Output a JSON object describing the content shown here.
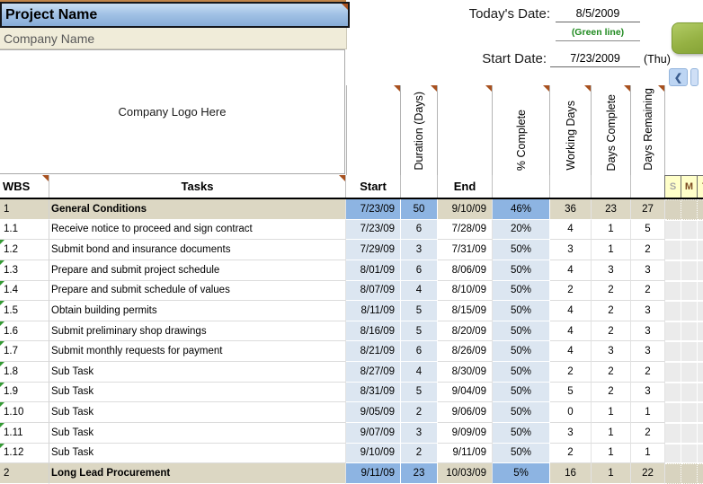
{
  "header": {
    "project_name": "Project Name",
    "company_name": "Company Name",
    "logo_placeholder": "Company Logo Here",
    "todays_date_label": "Today's Date:",
    "todays_date_value": "8/5/2009",
    "green_line_note": "(Green line)",
    "start_date_label": "Start Date:",
    "start_date_value": "7/23/2009",
    "start_date_day": "(Thu)"
  },
  "scrollbar": {
    "left_arrow": "❮"
  },
  "columns": {
    "wbs": "WBS",
    "tasks": "Tasks",
    "start": "Start",
    "duration": "Duration (Days)",
    "end": "End",
    "pct_complete": "% Complete",
    "working_days": "Working Days",
    "days_complete": "Days Complete",
    "days_remaining": "Days Remaining"
  },
  "day_headers": [
    "S",
    "M",
    "T"
  ],
  "colors": {
    "banner_blue": "#a3c3e6",
    "summary_blue": "#8db4e2",
    "task_blue": "#dce6f1",
    "summary_tan": "#dcd7c3",
    "day_header_yellow": "#ffffc9",
    "button_green": "#95b143",
    "green_note": "#1f8a1f",
    "comment_marker": "#a8511f",
    "flag_green": "#339933"
  },
  "rows": [
    {
      "wbs": "1",
      "task": "General Conditions",
      "start": "7/23/09",
      "duration": "50",
      "end": "9/10/09",
      "pct": "46%",
      "working": "36",
      "complete": "23",
      "remaining": "27",
      "summary": true,
      "flag": false
    },
    {
      "wbs": "1.1",
      "task": "Receive notice to proceed and sign contract",
      "start": "7/23/09",
      "duration": "6",
      "end": "7/28/09",
      "pct": "20%",
      "working": "4",
      "complete": "1",
      "remaining": "5",
      "summary": false,
      "flag": false
    },
    {
      "wbs": "1.2",
      "task": "Submit bond and insurance documents",
      "start": "7/29/09",
      "duration": "3",
      "end": "7/31/09",
      "pct": "50%",
      "working": "3",
      "complete": "1",
      "remaining": "2",
      "summary": false,
      "flag": true
    },
    {
      "wbs": "1.3",
      "task": "Prepare and submit project schedule",
      "start": "8/01/09",
      "duration": "6",
      "end": "8/06/09",
      "pct": "50%",
      "working": "4",
      "complete": "3",
      "remaining": "3",
      "summary": false,
      "flag": true
    },
    {
      "wbs": "1.4",
      "task": "Prepare and submit schedule of values",
      "start": "8/07/09",
      "duration": "4",
      "end": "8/10/09",
      "pct": "50%",
      "working": "2",
      "complete": "2",
      "remaining": "2",
      "summary": false,
      "flag": true
    },
    {
      "wbs": "1.5",
      "task": "Obtain building permits",
      "start": "8/11/09",
      "duration": "5",
      "end": "8/15/09",
      "pct": "50%",
      "working": "4",
      "complete": "2",
      "remaining": "3",
      "summary": false,
      "flag": true
    },
    {
      "wbs": "1.6",
      "task": "Submit preliminary shop drawings",
      "start": "8/16/09",
      "duration": "5",
      "end": "8/20/09",
      "pct": "50%",
      "working": "4",
      "complete": "2",
      "remaining": "3",
      "summary": false,
      "flag": true
    },
    {
      "wbs": "1.7",
      "task": "Submit monthly requests for payment",
      "start": "8/21/09",
      "duration": "6",
      "end": "8/26/09",
      "pct": "50%",
      "working": "4",
      "complete": "3",
      "remaining": "3",
      "summary": false,
      "flag": true
    },
    {
      "wbs": "1.8",
      "task": "Sub Task",
      "start": "8/27/09",
      "duration": "4",
      "end": "8/30/09",
      "pct": "50%",
      "working": "2",
      "complete": "2",
      "remaining": "2",
      "summary": false,
      "flag": true
    },
    {
      "wbs": "1.9",
      "task": "Sub Task",
      "start": "8/31/09",
      "duration": "5",
      "end": "9/04/09",
      "pct": "50%",
      "working": "5",
      "complete": "2",
      "remaining": "3",
      "summary": false,
      "flag": true
    },
    {
      "wbs": "1.10",
      "task": "Sub Task",
      "start": "9/05/09",
      "duration": "2",
      "end": "9/06/09",
      "pct": "50%",
      "working": "0",
      "complete": "1",
      "remaining": "1",
      "summary": false,
      "flag": true
    },
    {
      "wbs": "1.11",
      "task": "Sub Task",
      "start": "9/07/09",
      "duration": "3",
      "end": "9/09/09",
      "pct": "50%",
      "working": "3",
      "complete": "1",
      "remaining": "2",
      "summary": false,
      "flag": true
    },
    {
      "wbs": "1.12",
      "task": "Sub Task",
      "start": "9/10/09",
      "duration": "2",
      "end": "9/11/09",
      "pct": "50%",
      "working": "2",
      "complete": "1",
      "remaining": "1",
      "summary": false,
      "flag": true
    },
    {
      "wbs": "2",
      "task": "Long Lead Procurement",
      "start": "9/11/09",
      "duration": "23",
      "end": "10/03/09",
      "pct": "5%",
      "working": "16",
      "complete": "1",
      "remaining": "22",
      "summary": true,
      "flag": false
    }
  ]
}
